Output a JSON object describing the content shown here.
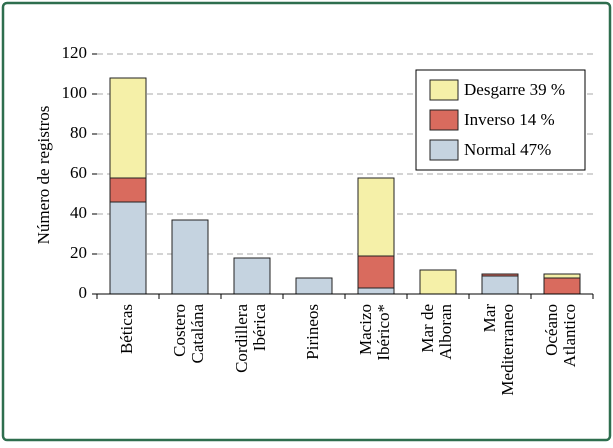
{
  "chart_data": {
    "type": "stacked_bar",
    "categories": [
      [
        "Béticas"
      ],
      [
        "Costero",
        "Catalána"
      ],
      [
        "Cordillera",
        "Ibérica"
      ],
      [
        "Pirineos"
      ],
      [
        "Macizo",
        "Ibérico*"
      ],
      [
        "Mar de",
        "Alboran"
      ],
      [
        "Mar",
        "Mediterraneo"
      ],
      [
        "Océano",
        "Atlantico"
      ]
    ],
    "series": [
      {
        "name": "Normal 47%",
        "color": "#c5d3e0",
        "values": [
          46,
          37,
          18,
          8,
          3,
          0,
          9,
          0
        ]
      },
      {
        "name": "Inverso 14 %",
        "color": "#d96b5e",
        "values": [
          12,
          0,
          0,
          0,
          16,
          0,
          1,
          8
        ]
      },
      {
        "name": "Desgarre 39 %",
        "color": "#f5f0a8",
        "values": [
          50,
          0,
          0,
          0,
          39,
          12,
          0,
          2
        ]
      }
    ],
    "ylabel": "Número de registros",
    "ylim": [
      0,
      120
    ],
    "yticks": [
      0,
      20,
      40,
      60,
      80,
      100,
      120
    ],
    "grid": true,
    "legend": "upper right"
  }
}
